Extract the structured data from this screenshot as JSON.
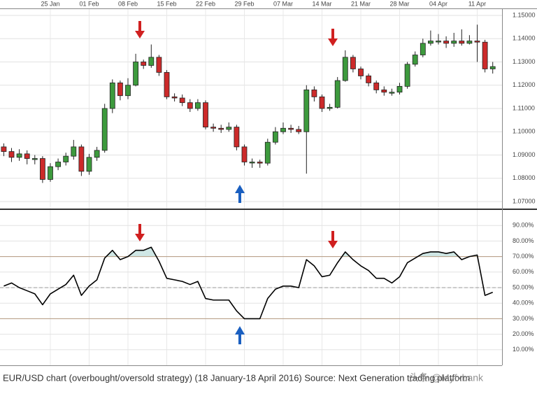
{
  "chart_data": [
    {
      "type": "candlestick",
      "categories": [
        null,
        null,
        null,
        null,
        null,
        null,
        "25 Jan",
        null,
        null,
        null,
        null,
        "01 Feb",
        null,
        null,
        null,
        null,
        "08 Feb",
        null,
        null,
        null,
        null,
        "15 Feb",
        null,
        null,
        null,
        null,
        "22 Feb",
        null,
        null,
        null,
        null,
        "29 Feb",
        null,
        null,
        null,
        null,
        "07 Mar",
        null,
        null,
        null,
        null,
        "14 Mar",
        null,
        null,
        null,
        null,
        "21 Mar",
        null,
        null,
        null,
        null,
        "28 Mar",
        null,
        null,
        null,
        null,
        "04 Apr",
        null,
        null,
        null,
        null,
        "11 Apr",
        null,
        null
      ],
      "open": [
        1.0935,
        1.0915,
        1.089,
        1.0905,
        1.0885,
        1.0885,
        1.0795,
        1.085,
        1.087,
        1.0895,
        1.0935,
        1.083,
        1.089,
        1.092,
        1.11,
        1.121,
        1.1155,
        1.12,
        1.13,
        1.1285,
        1.132,
        1.1255,
        1.115,
        1.1145,
        1.1125,
        1.11,
        1.1125,
        1.102,
        1.1015,
        1.101,
        1.102,
        1.0935,
        1.087,
        1.087,
        1.0865,
        1.0955,
        1.1,
        1.1015,
        1.101,
        1.1,
        1.118,
        1.115,
        1.11,
        1.1105,
        1.122,
        1.132,
        1.127,
        1.124,
        1.121,
        1.118,
        1.117,
        1.117,
        1.1195,
        1.129,
        1.133,
        1.138,
        1.139,
        1.139,
        1.138,
        1.139,
        1.138,
        1.139,
        1.1385,
        1.127
      ],
      "high": [
        1.095,
        1.093,
        1.0925,
        1.092,
        1.09,
        1.0895,
        1.0865,
        1.0885,
        1.091,
        1.0965,
        1.0945,
        1.0905,
        1.0935,
        1.112,
        1.1225,
        1.122,
        1.123,
        1.1335,
        1.131,
        1.1375,
        1.133,
        1.1265,
        1.1165,
        1.116,
        1.114,
        1.114,
        1.1135,
        1.1035,
        1.103,
        1.104,
        1.103,
        1.0945,
        1.0885,
        1.088,
        1.097,
        1.102,
        1.104,
        1.103,
        1.1025,
        1.12,
        1.1195,
        1.116,
        1.112,
        1.1235,
        1.135,
        1.133,
        1.128,
        1.125,
        1.122,
        1.1195,
        1.1185,
        1.121,
        1.13,
        1.1345,
        1.14,
        1.1435,
        1.142,
        1.141,
        1.1425,
        1.144,
        1.1415,
        1.146,
        1.1395,
        1.13
      ],
      "low": [
        1.0895,
        1.087,
        1.0875,
        1.086,
        1.086,
        1.078,
        1.0785,
        1.0835,
        1.0855,
        1.088,
        1.081,
        1.0815,
        1.0875,
        1.091,
        1.108,
        1.1135,
        1.114,
        1.1195,
        1.127,
        1.1275,
        1.124,
        1.114,
        1.113,
        1.111,
        1.1085,
        1.109,
        1.101,
        1.1,
        1.0995,
        1.1,
        1.092,
        1.0855,
        1.0845,
        1.0845,
        1.0855,
        1.0945,
        1.099,
        1.0995,
        1.099,
        1.082,
        1.113,
        1.1085,
        1.109,
        1.11,
        1.1215,
        1.1255,
        1.1225,
        1.1195,
        1.1165,
        1.1155,
        1.1155,
        1.116,
        1.1185,
        1.128,
        1.132,
        1.137,
        1.1375,
        1.136,
        1.1365,
        1.137,
        1.1375,
        1.13,
        1.1255,
        1.125
      ],
      "close": [
        1.0915,
        1.089,
        1.0905,
        1.0885,
        1.0885,
        1.0795,
        1.085,
        1.087,
        1.0895,
        1.0935,
        1.083,
        1.089,
        1.092,
        1.11,
        1.121,
        1.1155,
        1.12,
        1.13,
        1.1285,
        1.132,
        1.1255,
        1.115,
        1.1145,
        1.1125,
        1.11,
        1.1125,
        1.102,
        1.1015,
        1.101,
        1.102,
        1.0935,
        1.087,
        1.087,
        1.0865,
        1.0955,
        1.1,
        1.1015,
        1.101,
        1.1,
        1.118,
        1.115,
        1.11,
        1.1105,
        1.122,
        1.132,
        1.127,
        1.124,
        1.121,
        1.118,
        1.117,
        1.117,
        1.1195,
        1.129,
        1.133,
        1.138,
        1.139,
        1.139,
        1.138,
        1.139,
        1.138,
        1.139,
        1.1385,
        1.127,
        1.128
      ],
      "up_color": "#3d9a3d",
      "down_color": "#cc2a2a",
      "ylim": [
        1.067,
        1.153
      ],
      "yticks": [
        {
          "value": 1.07,
          "label": "1.07000"
        },
        {
          "value": 1.08,
          "label": "1.08000"
        },
        {
          "value": 1.09,
          "label": "1.09000"
        },
        {
          "value": 1.1,
          "label": "1.10000"
        },
        {
          "value": 1.11,
          "label": "1.11000"
        },
        {
          "value": 1.12,
          "label": "1.12000"
        },
        {
          "value": 1.13,
          "label": "1.13000"
        },
        {
          "value": 1.14,
          "label": "1.14000"
        },
        {
          "value": 1.15,
          "label": "1.15000"
        }
      ],
      "grid": true
    },
    {
      "type": "line",
      "values": [
        51,
        53,
        50,
        48,
        46,
        39,
        46,
        49,
        52,
        58,
        45,
        51,
        55,
        69,
        74,
        68,
        70,
        74,
        74,
        76,
        67,
        56,
        55,
        54,
        52,
        54,
        43,
        42,
        42,
        42,
        35,
        30,
        30,
        30,
        43,
        49,
        51,
        51,
        50,
        68,
        64,
        57,
        58,
        66,
        73,
        68,
        64,
        61,
        56,
        56,
        53,
        57,
        66,
        69,
        72,
        73,
        73,
        72,
        73,
        68,
        70,
        71,
        45,
        47
      ],
      "color": "#000000",
      "fill_color": "#cfe7e5",
      "levels": [
        70,
        50,
        30
      ],
      "ylim": [
        0,
        100
      ],
      "yticks": [
        {
          "value": 10,
          "label": "10.00%"
        },
        {
          "value": 20,
          "label": "20.00%"
        },
        {
          "value": 30,
          "label": "30.00%"
        },
        {
          "value": 40,
          "label": "40.00%"
        },
        {
          "value": 50,
          "label": "50.00%"
        },
        {
          "value": 60,
          "label": "60.00%"
        },
        {
          "value": 70,
          "label": "70.00%"
        },
        {
          "value": 80,
          "label": "80.00%"
        },
        {
          "value": 90,
          "label": "90.00%"
        }
      ],
      "grid": true
    }
  ],
  "caption": "EUR/USD chart (overbought/oversold strategy) (18 January-18 April 2016) Source: Next Generation trading platform",
  "watermark": "头条 @Myfxbank"
}
